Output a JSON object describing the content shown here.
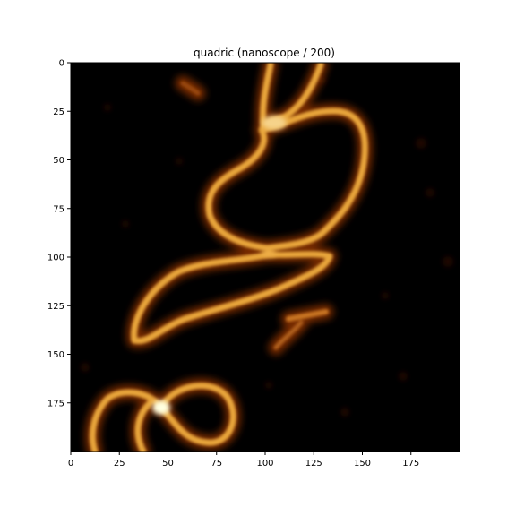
{
  "chart_data": {
    "type": "heatmap",
    "title": "quadric (nanoscope / 200)",
    "xlabel": "",
    "ylabel": "",
    "xlim": [
      0,
      200
    ],
    "ylim": [
      200,
      0
    ],
    "xticks": [
      0,
      25,
      50,
      75,
      100,
      125,
      150,
      175
    ],
    "yticks": [
      0,
      25,
      50,
      75,
      100,
      125,
      150,
      175
    ],
    "colormap": "afmhot",
    "colors": {
      "background": "#000000",
      "strand": "#e8a53a",
      "highlight": "#ffffe0"
    },
    "grid": false,
    "legend": "none"
  }
}
